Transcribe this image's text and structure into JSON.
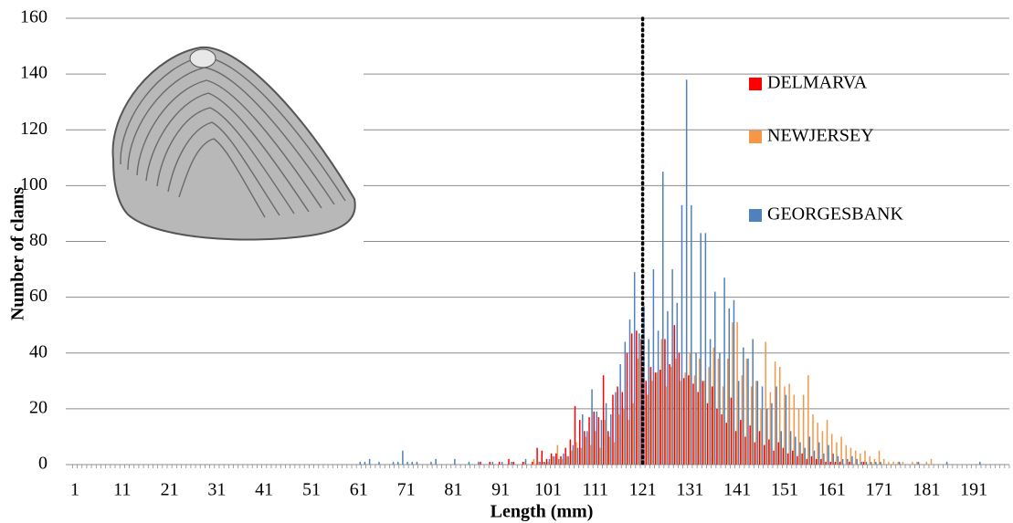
{
  "chart_data": {
    "type": "bar",
    "x_label": "Length (mm)",
    "y_label": "Number of clams",
    "categories": [
      1,
      null,
      null,
      null,
      null,
      null,
      null,
      null,
      null,
      null,
      11,
      null,
      null,
      null,
      null,
      null,
      null,
      null,
      null,
      null,
      21,
      null,
      null,
      null,
      null,
      null,
      null,
      null,
      null,
      null,
      31,
      null,
      null,
      null,
      null,
      null,
      null,
      null,
      null,
      null,
      41,
      null,
      null,
      null,
      null,
      null,
      null,
      null,
      null,
      null,
      51,
      null,
      null,
      null,
      null,
      null,
      null,
      null,
      null,
      null,
      61,
      null,
      null,
      null,
      null,
      null,
      null,
      null,
      null,
      null,
      71,
      null,
      null,
      null,
      null,
      null,
      null,
      null,
      null,
      null,
      81,
      null,
      null,
      null,
      null,
      null,
      null,
      null,
      null,
      null,
      91,
      null,
      null,
      null,
      null,
      null,
      null,
      null,
      null,
      null,
      101,
      null,
      null,
      null,
      null,
      null,
      null,
      null,
      null,
      null,
      111,
      null,
      null,
      null,
      null,
      null,
      null,
      null,
      null,
      null,
      121,
      null,
      null,
      null,
      null,
      null,
      null,
      null,
      null,
      null,
      131,
      null,
      null,
      null,
      null,
      null,
      null,
      null,
      null,
      null,
      141,
      null,
      null,
      null,
      null,
      null,
      null,
      null,
      null,
      null,
      151,
      null,
      null,
      null,
      null,
      null,
      null,
      null,
      null,
      null,
      161,
      null,
      null,
      null,
      null,
      null,
      null,
      null,
      null,
      null,
      171,
      null,
      null,
      null,
      null,
      null,
      null,
      null,
      null,
      null,
      181,
      null,
      null,
      null,
      null,
      null,
      null,
      null,
      null,
      null,
      191,
      null,
      null,
      null,
      null,
      null,
      null,
      null
    ],
    "series": [
      {
        "name": "DELMARVA",
        "color": "#ff0000",
        "values": [
          0,
          0,
          0,
          0,
          0,
          0,
          0,
          0,
          0,
          0,
          0,
          0,
          0,
          0,
          0,
          0,
          0,
          0,
          0,
          0,
          0,
          0,
          0,
          0,
          0,
          0,
          0,
          0,
          0,
          0,
          0,
          0,
          0,
          0,
          0,
          0,
          0,
          0,
          0,
          0,
          0,
          0,
          0,
          0,
          0,
          0,
          0,
          0,
          0,
          0,
          0,
          0,
          0,
          0,
          0,
          0,
          0,
          0,
          0,
          0,
          0,
          0,
          0,
          0,
          0,
          0,
          0,
          0,
          0,
          0,
          0,
          0,
          0,
          0,
          0,
          0,
          0,
          0,
          0,
          0,
          0,
          0,
          0,
          0,
          0,
          0,
          1,
          0,
          1,
          0,
          1,
          0,
          2,
          1,
          0,
          1,
          0,
          1,
          6,
          5,
          2,
          4,
          4,
          3,
          6,
          9,
          21,
          16,
          12,
          17,
          19,
          17,
          32,
          12,
          25,
          28,
          26,
          40,
          47,
          48,
          45,
          30,
          35,
          33,
          34,
          45,
          36,
          50,
          40,
          31,
          32,
          29,
          26,
          30,
          22,
          28,
          20,
          18,
          15,
          24,
          12,
          16,
          10,
          14,
          8,
          12,
          7,
          9,
          5,
          8,
          6,
          4,
          5,
          3,
          4,
          2,
          3,
          2,
          2,
          1,
          1,
          1,
          1,
          0,
          1,
          0,
          0,
          1,
          0,
          0,
          0,
          0,
          0,
          0,
          0,
          0,
          0,
          0,
          0,
          0,
          0,
          0,
          0,
          0,
          0,
          0,
          0,
          0,
          0,
          0,
          0,
          0,
          0,
          0,
          0,
          0,
          0,
          0
        ]
      },
      {
        "name": "NEWJERSEY",
        "color": "#f79646",
        "values": [
          0,
          0,
          0,
          0,
          0,
          0,
          0,
          0,
          0,
          0,
          0,
          0,
          0,
          0,
          0,
          0,
          0,
          0,
          0,
          0,
          0,
          0,
          0,
          0,
          0,
          0,
          0,
          0,
          0,
          0,
          0,
          0,
          0,
          0,
          0,
          0,
          0,
          0,
          0,
          0,
          0,
          0,
          0,
          0,
          0,
          0,
          0,
          0,
          0,
          0,
          0,
          0,
          0,
          0,
          0,
          0,
          0,
          0,
          0,
          0,
          0,
          0,
          0,
          0,
          0,
          0,
          0,
          0,
          0,
          0,
          0,
          0,
          0,
          0,
          0,
          0,
          0,
          0,
          0,
          0,
          0,
          0,
          0,
          0,
          0,
          0,
          0,
          0,
          0,
          0,
          0,
          0,
          0,
          0,
          0,
          1,
          0,
          2,
          1,
          1,
          1,
          3,
          7,
          2,
          3,
          5,
          8,
          6,
          10,
          7,
          12,
          6,
          16,
          10,
          8,
          18,
          20,
          16,
          22,
          38,
          35,
          25,
          30,
          33,
          45,
          28,
          35,
          38,
          30,
          33,
          40,
          32,
          38,
          30,
          35,
          42,
          38,
          28,
          38,
          51,
          51,
          32,
          38,
          28,
          30,
          20,
          44,
          26,
          37,
          35,
          28,
          29,
          25,
          20,
          25,
          32,
          18,
          15,
          12,
          16,
          11,
          8,
          10,
          7,
          6,
          5,
          4,
          5,
          3,
          2,
          5,
          2,
          1,
          1,
          1,
          1,
          0,
          1,
          1,
          0,
          1,
          2,
          0,
          0,
          0,
          0,
          0,
          0,
          0,
          0,
          0,
          0,
          0,
          0,
          0,
          0,
          0,
          0
        ]
      },
      {
        "name": "GEORGESBANK",
        "color": "#4f81bd",
        "values": [
          0,
          0,
          0,
          0,
          0,
          0,
          0,
          0,
          0,
          0,
          0,
          0,
          0,
          0,
          0,
          0,
          0,
          0,
          0,
          0,
          0,
          0,
          0,
          0,
          0,
          0,
          0,
          0,
          0,
          0,
          0,
          0,
          0,
          0,
          0,
          0,
          0,
          0,
          0,
          0,
          0,
          0,
          0,
          0,
          0,
          0,
          0,
          0,
          0,
          0,
          0,
          0,
          0,
          0,
          0,
          0,
          0,
          0,
          0,
          0,
          1,
          1,
          2,
          0,
          1,
          0,
          0,
          1,
          1,
          5,
          1,
          1,
          1,
          0,
          0,
          1,
          2,
          0,
          0,
          0,
          2,
          0,
          0,
          1,
          0,
          1,
          0,
          0,
          1,
          0,
          1,
          0,
          1,
          0,
          0,
          2,
          0,
          0,
          1,
          1,
          2,
          3,
          2,
          4,
          3,
          7,
          6,
          18,
          12,
          27,
          19,
          16,
          22,
          18,
          26,
          36,
          44,
          52,
          69,
          47,
          57,
          45,
          70,
          48,
          105,
          55,
          70,
          58,
          93,
          138,
          93,
          40,
          83,
          83,
          45,
          62,
          40,
          67,
          56,
          59,
          30,
          42,
          38,
          45,
          30,
          28,
          20,
          22,
          28,
          12,
          25,
          12,
          10,
          8,
          6,
          10,
          5,
          8,
          4,
          7,
          4,
          3,
          2,
          2,
          3,
          2,
          1,
          1,
          1,
          1,
          1,
          0,
          0,
          0,
          1,
          0,
          0,
          0,
          1,
          0,
          0,
          0,
          0,
          0,
          1,
          0,
          0,
          0,
          0,
          0,
          0,
          1,
          0,
          0,
          0,
          0,
          0,
          0
        ]
      }
    ],
    "reference_line": 121,
    "ylim": [
      0,
      160
    ],
    "yticks": [
      0,
      20,
      40,
      60,
      80,
      100,
      120,
      140,
      160
    ],
    "grid": true
  }
}
